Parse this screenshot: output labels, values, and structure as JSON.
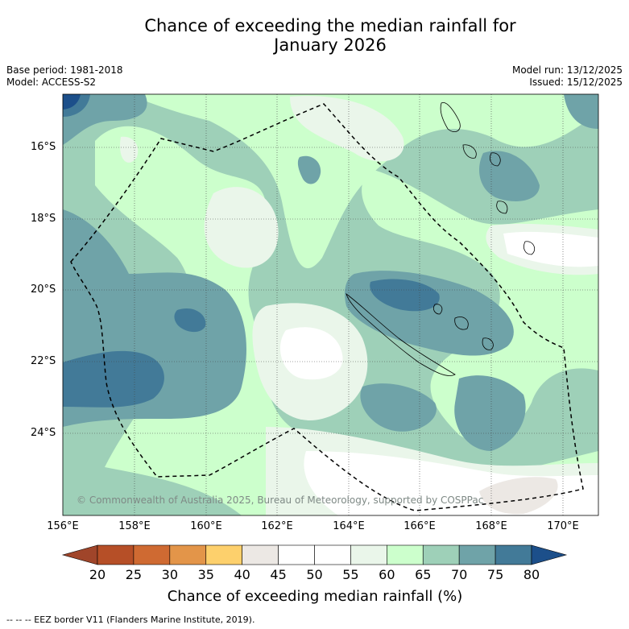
{
  "title_line1": "Chance of exceeding the median rainfall for",
  "title_line2": "January 2026",
  "base_period": "Base period: 1981-2018",
  "model": "Model: ACCESS-S2",
  "model_run": "Model run: 13/12/2025",
  "issued": "Issued: 15/12/2025",
  "lat_labels": [
    "16°S",
    "18°S",
    "20°S",
    "22°S",
    "24°S"
  ],
  "lon_labels": [
    "156°E",
    "158°E",
    "160°E",
    "162°E",
    "164°E",
    "166°E",
    "168°E",
    "170°E"
  ],
  "copyright": "© Commonwealth of Australia 2025, Bureau of Meteorology, supported by COSPPac",
  "colorbar": {
    "ticks": [
      "20",
      "25",
      "30",
      "35",
      "40",
      "45",
      "50",
      "55",
      "60",
      "65",
      "70",
      "75",
      "80"
    ],
    "colors": [
      "#a0452a",
      "#b64f27",
      "#cf6a32",
      "#e39549",
      "#fdd06c",
      "#ece8e4",
      "#ffffff",
      "#ffffff",
      "#eaf6ea",
      "#ccffcc",
      "#9ed0b8",
      "#6fa3a8",
      "#427a98",
      "#1c4f8a"
    ],
    "label": "Chance of exceeding median rainfall (%)"
  },
  "legend_text": "--  --  -- EEZ border V11 (Flanders Marine Institute, 2019).",
  "palette": {
    "c45": "#ece8e4",
    "c50": "#ffffff",
    "c55": "#eaf6ea",
    "c60": "#ccffcc",
    "c65": "#9ed0b8",
    "c70": "#6fa3a8",
    "c75": "#427a98",
    "c80": "#1c4f8a"
  }
}
